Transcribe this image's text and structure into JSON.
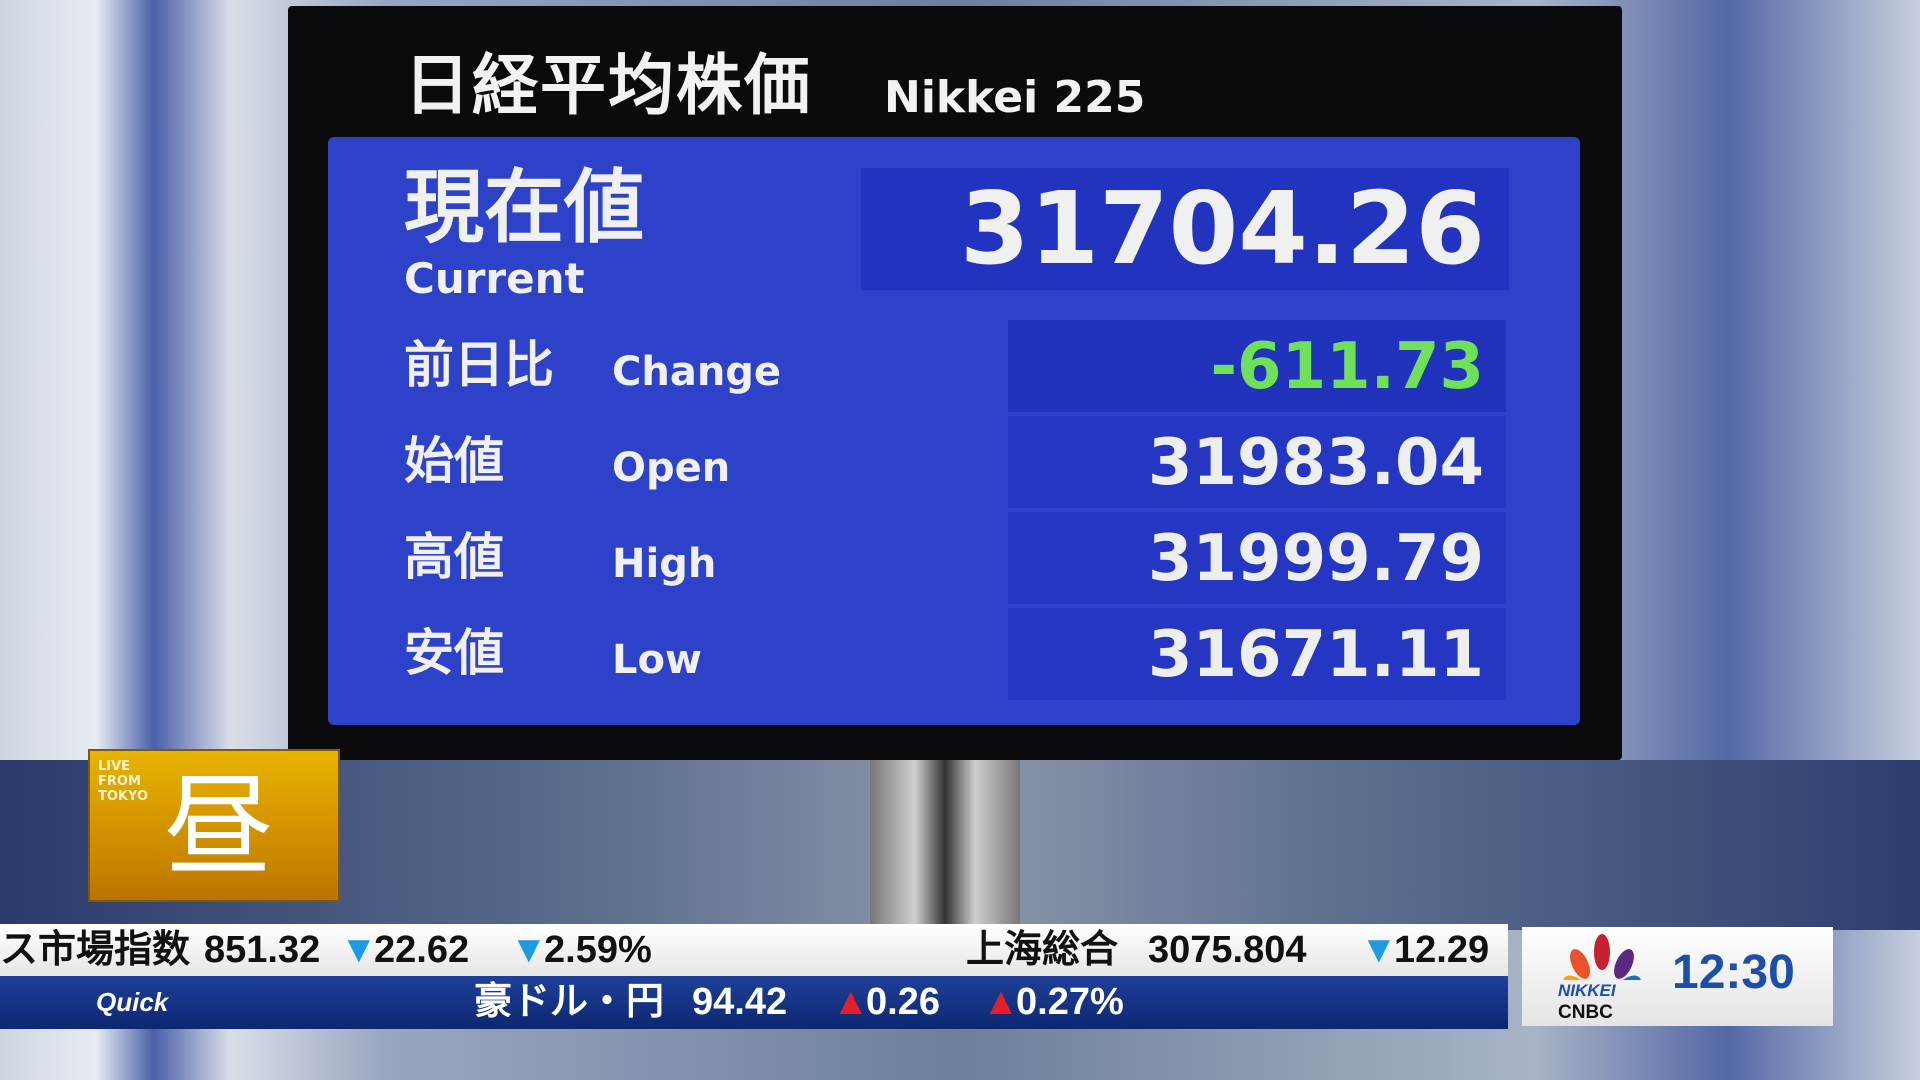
{
  "board": {
    "title_jp": "日経平均株価",
    "title_en": "Nikkei 225",
    "current": {
      "label_jp": "現在値",
      "label_en": "Current",
      "value": "31704.26"
    },
    "rows": [
      {
        "label_jp": "前日比",
        "label_en": "Change",
        "value": "-611.73",
        "color": "#6ee05a"
      },
      {
        "label_jp": "始値",
        "label_en": "Open",
        "value": "31983.04"
      },
      {
        "label_jp": "高値",
        "label_en": "High",
        "value": "31999.79"
      },
      {
        "label_jp": "安値",
        "label_en": "Low",
        "value": "31671.11"
      }
    ]
  },
  "badge": {
    "line1": "LIVE",
    "line2": "FROM",
    "line3": "TOKYO",
    "kanji": "昼"
  },
  "ticker_top": {
    "name1": "ス市場指数",
    "value1": "851.32",
    "change1": "22.62",
    "pct1": "2.59%",
    "name2": "上海総合",
    "value2": "3075.804",
    "change2": "12.29",
    "down_symbol": "▼"
  },
  "ticker_bottom": {
    "source": "Quick",
    "name": "豪ドル・円",
    "value": "94.42",
    "change": "0.26",
    "pct": "0.27%",
    "up_symbol": "▲"
  },
  "logo": {
    "line1": "NIKKEI",
    "line2": "CNBC",
    "time": "12:30"
  }
}
